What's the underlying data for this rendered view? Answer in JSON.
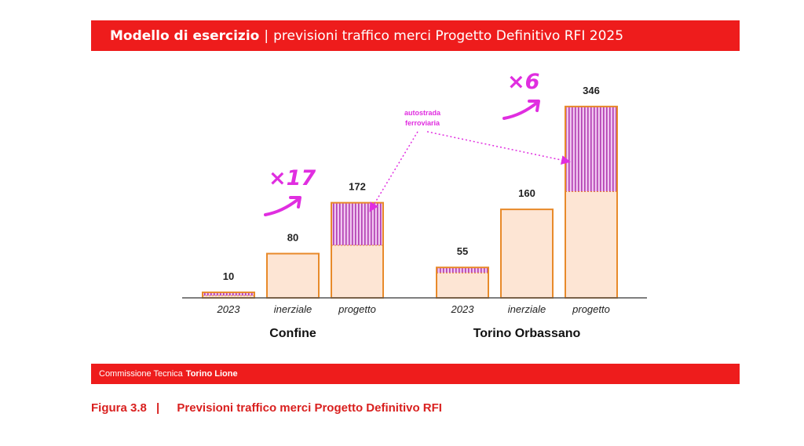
{
  "header": {
    "title_bold": "Modello di esercizio",
    "separator": "|",
    "title_rest": "previsioni traffico merci Progetto Definitivo RFI 2025"
  },
  "chart_data": {
    "type": "bar",
    "groups": [
      {
        "name": "Confine",
        "bars": [
          {
            "category": "2023",
            "total": 10,
            "base": 4,
            "highway": 6
          },
          {
            "category": "inerziale",
            "total": 80,
            "base": 80,
            "highway": 0
          },
          {
            "category": "progetto",
            "total": 172,
            "base": 95,
            "highway": 77
          }
        ],
        "annotation": "×17"
      },
      {
        "name": "Torino Orbassano",
        "bars": [
          {
            "category": "2023",
            "total": 55,
            "base": 45,
            "highway": 10
          },
          {
            "category": "inerziale",
            "total": 160,
            "base": 160,
            "highway": 0
          },
          {
            "category": "progetto",
            "total": 346,
            "base": 192,
            "highway": 154
          }
        ],
        "annotation": "×6"
      }
    ],
    "callout": [
      "autostrada",
      "ferroviaria"
    ],
    "ylim": [
      0,
      360
    ],
    "colors": {
      "base_fill": "#fde5d4",
      "base_stroke": "#e88a2a",
      "highway_fill": "#e6a3e6",
      "highway_line": "#b23db2",
      "annotation": "#e02ee0"
    }
  },
  "footer": {
    "org_prefix": "Commissione Tecnica",
    "org_bold": "Torino Lione"
  },
  "caption": {
    "figure": "Figura 3.8",
    "separator": "|",
    "text": "Previsioni traffico merci Progetto Definitivo RFI"
  }
}
